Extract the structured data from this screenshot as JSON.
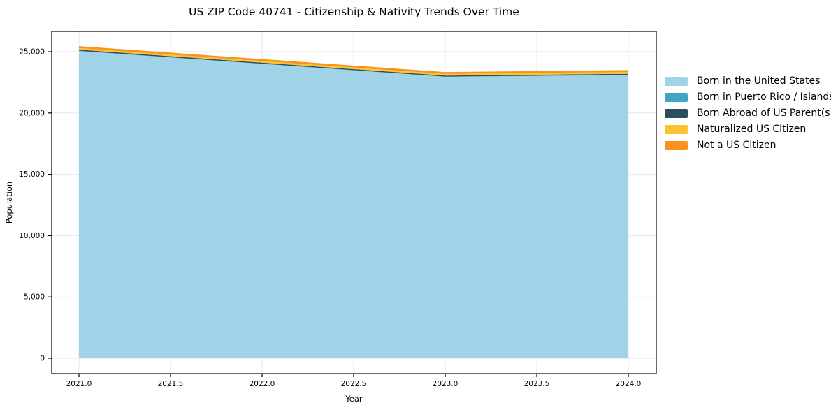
{
  "title": "US ZIP Code 40741 - Citizenship & Nativity Trends Over Time",
  "axes": {
    "x_label": "Year",
    "y_label": "Population",
    "x_ticks": [
      "2021.0",
      "2021.5",
      "2022.0",
      "2022.5",
      "2023.0",
      "2023.5",
      "2024.0"
    ],
    "y_ticks": [
      "0",
      "5,000",
      "10,000",
      "15,000",
      "20,000",
      "25,000"
    ]
  },
  "colors": {
    "grid": "#e7e7e7",
    "spine": "#000000",
    "background": "#ffffff"
  },
  "legend": [
    {
      "label": "Born in the United States",
      "color": "#a0d2e8"
    },
    {
      "label": "Born in Puerto Rico / Islands",
      "color": "#3fa5c2"
    },
    {
      "label": "Born Abroad of US Parent(s)",
      "color": "#2c4d5e"
    },
    {
      "label": "Naturalized US Citizen",
      "color": "#fcc32d"
    },
    {
      "label": "Not a US Citizen",
      "color": "#f8941e"
    }
  ],
  "chart_data": {
    "type": "area",
    "stacked": true,
    "title": "US ZIP Code 40741 - Citizenship & Nativity Trends Over Time",
    "xlabel": "Year",
    "ylabel": "Population",
    "x": [
      2021,
      2022,
      2023,
      2024
    ],
    "series": [
      {
        "name": "Born in the United States",
        "color": "#a0d2e8",
        "values": [
          25050,
          24000,
          22950,
          23090
        ]
      },
      {
        "name": "Born in Puerto Rico / Islands",
        "color": "#3fa5c2",
        "values": [
          20,
          20,
          20,
          20
        ]
      },
      {
        "name": "Born Abroad of US Parent(s)",
        "color": "#2c4d5e",
        "values": [
          90,
          85,
          80,
          85
        ]
      },
      {
        "name": "Naturalized US Citizen",
        "color": "#fcc32d",
        "values": [
          125,
          130,
          140,
          145
        ]
      },
      {
        "name": "Not a US Citizen",
        "color": "#f8941e",
        "values": [
          160,
          160,
          150,
          155
        ]
      }
    ],
    "totals": [
      25445,
      24395,
      23340,
      23495
    ],
    "xlim": [
      2021.0,
      2024.0
    ],
    "ylim": [
      0,
      26650
    ],
    "x_tick_values": [
      2021.0,
      2021.5,
      2022.0,
      2022.5,
      2023.0,
      2023.5,
      2024.0
    ],
    "y_tick_values": [
      0,
      5000,
      10000,
      15000,
      20000,
      25000
    ],
    "grid": true,
    "legend_position": "right"
  }
}
